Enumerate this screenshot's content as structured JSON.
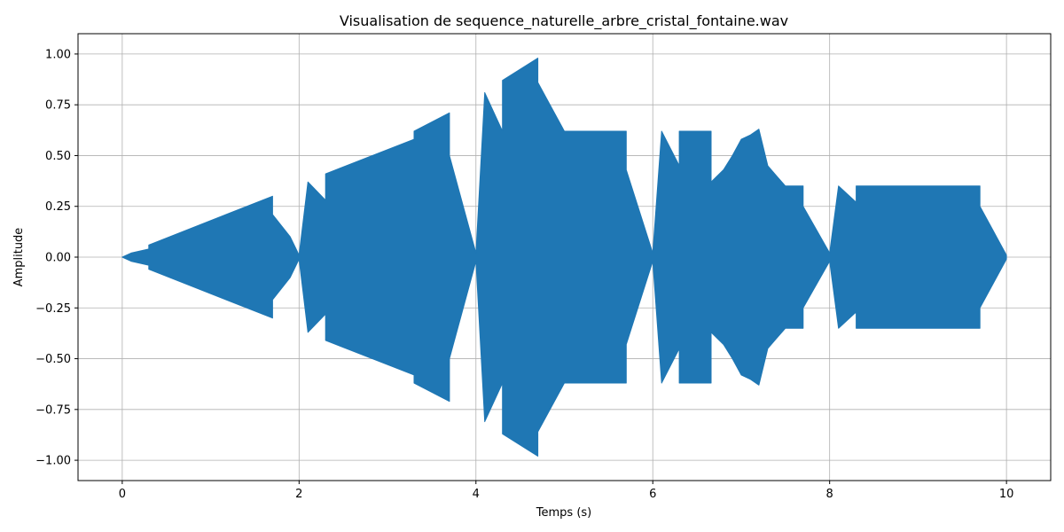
{
  "chart_data": {
    "type": "area",
    "title": "Visualisation de sequence_naturelle_arbre_cristal_fontaine.wav",
    "xlabel": "Temps (s)",
    "ylabel": "Amplitude",
    "xlim": [
      -0.5,
      10.5
    ],
    "ylim": [
      -1.1,
      1.1
    ],
    "x_ticks": [
      0,
      2,
      4,
      6,
      8,
      10
    ],
    "x_tick_labels": [
      "0",
      "2",
      "4",
      "6",
      "8",
      "10"
    ],
    "y_ticks": [
      1.0,
      0.75,
      0.5,
      0.25,
      0.0,
      -0.25,
      -0.5,
      -0.75,
      -1.0
    ],
    "y_tick_labels": [
      "1.00",
      "0.75",
      "0.50",
      "0.25",
      "0.00",
      "−0.25",
      "−0.50",
      "−0.75",
      "−1.00"
    ],
    "grid": true,
    "series": [
      {
        "color": "#1f77b4",
        "x": [
          0.0,
          0.1,
          0.2,
          0.3,
          0.3,
          1.7,
          1.7,
          1.9,
          2.0,
          2.1,
          2.3,
          2.3,
          3.3,
          3.3,
          3.7,
          3.7,
          4.0,
          4.1,
          4.3,
          4.3,
          4.7,
          4.7,
          5.0,
          5.7,
          5.7,
          6.0,
          6.1,
          6.3,
          6.3,
          6.66,
          6.66,
          6.8,
          6.9,
          7.0,
          7.1,
          7.2,
          7.3,
          7.4,
          7.5,
          7.5,
          7.7,
          7.7,
          8.0,
          8.1,
          8.3,
          8.3,
          9.7,
          9.7,
          10.0
        ],
        "amplitude": [
          0.0,
          0.02,
          0.03,
          0.04,
          0.06,
          0.3,
          0.21,
          0.1,
          0.01,
          0.37,
          0.28,
          0.41,
          0.58,
          0.62,
          0.71,
          0.5,
          0.02,
          0.81,
          0.62,
          0.87,
          0.98,
          0.86,
          0.62,
          0.62,
          0.43,
          0.02,
          0.62,
          0.45,
          0.62,
          0.62,
          0.37,
          0.43,
          0.5,
          0.58,
          0.6,
          0.63,
          0.45,
          0.4,
          0.35,
          0.35,
          0.35,
          0.25,
          0.02,
          0.35,
          0.27,
          0.35,
          0.35,
          0.25,
          0.01
        ]
      }
    ]
  }
}
